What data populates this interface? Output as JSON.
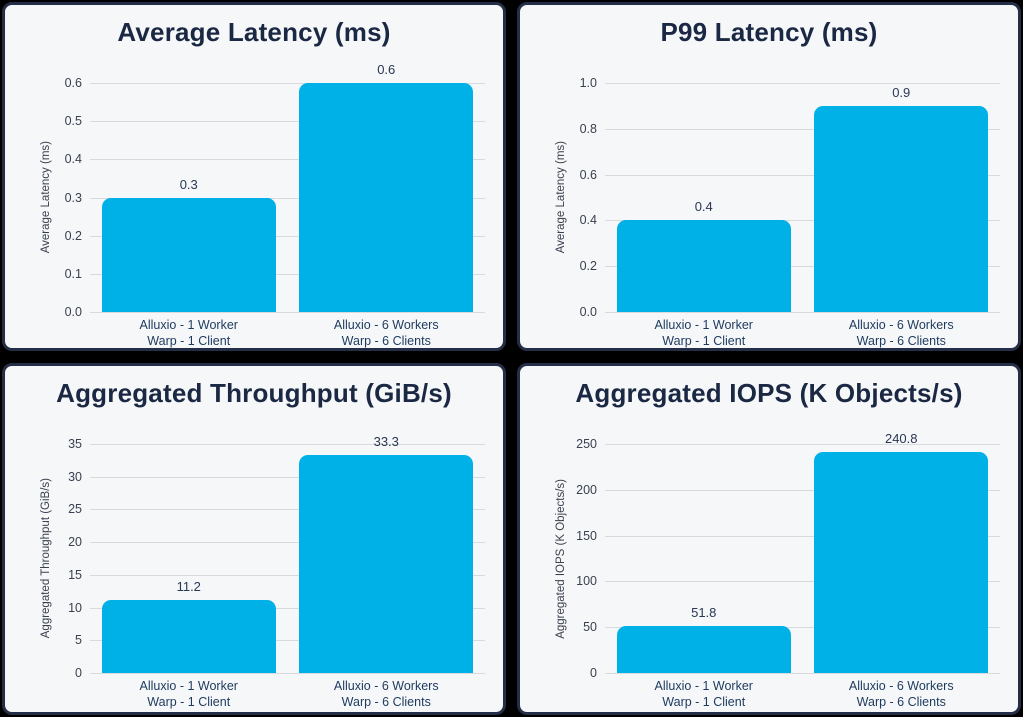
{
  "page": {
    "background": "#000000"
  },
  "panel_style": {
    "background": "#f6f7f9",
    "border_color": "#252e47",
    "title_color": "#1b2844",
    "grid_color": "#d9dade",
    "tick_color": "#39404f",
    "category_label_color": "#1d3a5e",
    "value_label_color": "#273852"
  },
  "bar_color": "#00b1e8",
  "chart_data": [
    {
      "type": "bar",
      "title": "Average Latency (ms)",
      "xlabel": "",
      "ylabel": "Average Latency (ms)",
      "categories": [
        [
          "Alluxio - 1 Worker",
          "Warp - 1 Client"
        ],
        [
          "Alluxio - 6 Workers",
          "Warp - 6 Clients"
        ]
      ],
      "values": [
        0.3,
        0.6
      ],
      "value_labels": [
        "0.3",
        "0.6"
      ],
      "yticks": [
        0,
        0.1,
        0.2,
        0.3,
        0.4,
        0.5,
        0.6
      ],
      "ytick_labels": [
        "0.0",
        "0.1",
        "0.2",
        "0.3",
        "0.4",
        "0.5",
        "0.6"
      ],
      "ylim": [
        0,
        0.6
      ],
      "grid": true,
      "legend": "none"
    },
    {
      "type": "bar",
      "title": "P99 Latency (ms)",
      "xlabel": "",
      "ylabel": "Average Latency (ms)",
      "categories": [
        [
          "Alluxio - 1 Worker",
          "Warp - 1 Client"
        ],
        [
          "Alluxio - 6 Workers",
          "Warp - 6 Clients"
        ]
      ],
      "values": [
        0.4,
        0.9
      ],
      "value_labels": [
        "0.4",
        "0.9"
      ],
      "yticks": [
        0,
        0.2,
        0.4,
        0.6,
        0.8,
        1.0
      ],
      "ytick_labels": [
        "0.0",
        "0.2",
        "0.4",
        "0.6",
        "0.8",
        "1.0"
      ],
      "ylim": [
        0,
        1.0
      ],
      "grid": true,
      "legend": "none"
    },
    {
      "type": "bar",
      "title": "Aggregated Throughput (GiB/s)",
      "xlabel": "",
      "ylabel": "Aggregated Throughput (GiB/s)",
      "categories": [
        [
          "Alluxio - 1 Worker",
          "Warp - 1 Client"
        ],
        [
          "Alluxio - 6 Workers",
          "Warp - 6 Clients"
        ]
      ],
      "values": [
        11.2,
        33.3
      ],
      "value_labels": [
        "11.2",
        "33.3"
      ],
      "yticks": [
        0,
        5,
        10,
        15,
        20,
        25,
        30,
        35
      ],
      "ytick_labels": [
        "0",
        "5",
        "10",
        "15",
        "20",
        "25",
        "30",
        "35"
      ],
      "ylim": [
        0,
        35
      ],
      "grid": true,
      "legend": "none"
    },
    {
      "type": "bar",
      "title": "Aggregated IOPS (K Objects/s)",
      "xlabel": "",
      "ylabel": "Aggregated IOPS (K Objects/s)",
      "categories": [
        [
          "Alluxio - 1 Worker",
          "Warp - 1 Client"
        ],
        [
          "Alluxio - 6 Workers",
          "Warp - 6 Clients"
        ]
      ],
      "values": [
        51.8,
        240.8
      ],
      "value_labels": [
        "51.8",
        "240.8"
      ],
      "yticks": [
        0,
        50,
        100,
        150,
        200,
        250
      ],
      "ytick_labels": [
        "0",
        "50",
        "100",
        "150",
        "200",
        "250"
      ],
      "ylim": [
        0,
        250
      ],
      "grid": true,
      "legend": "none"
    }
  ]
}
